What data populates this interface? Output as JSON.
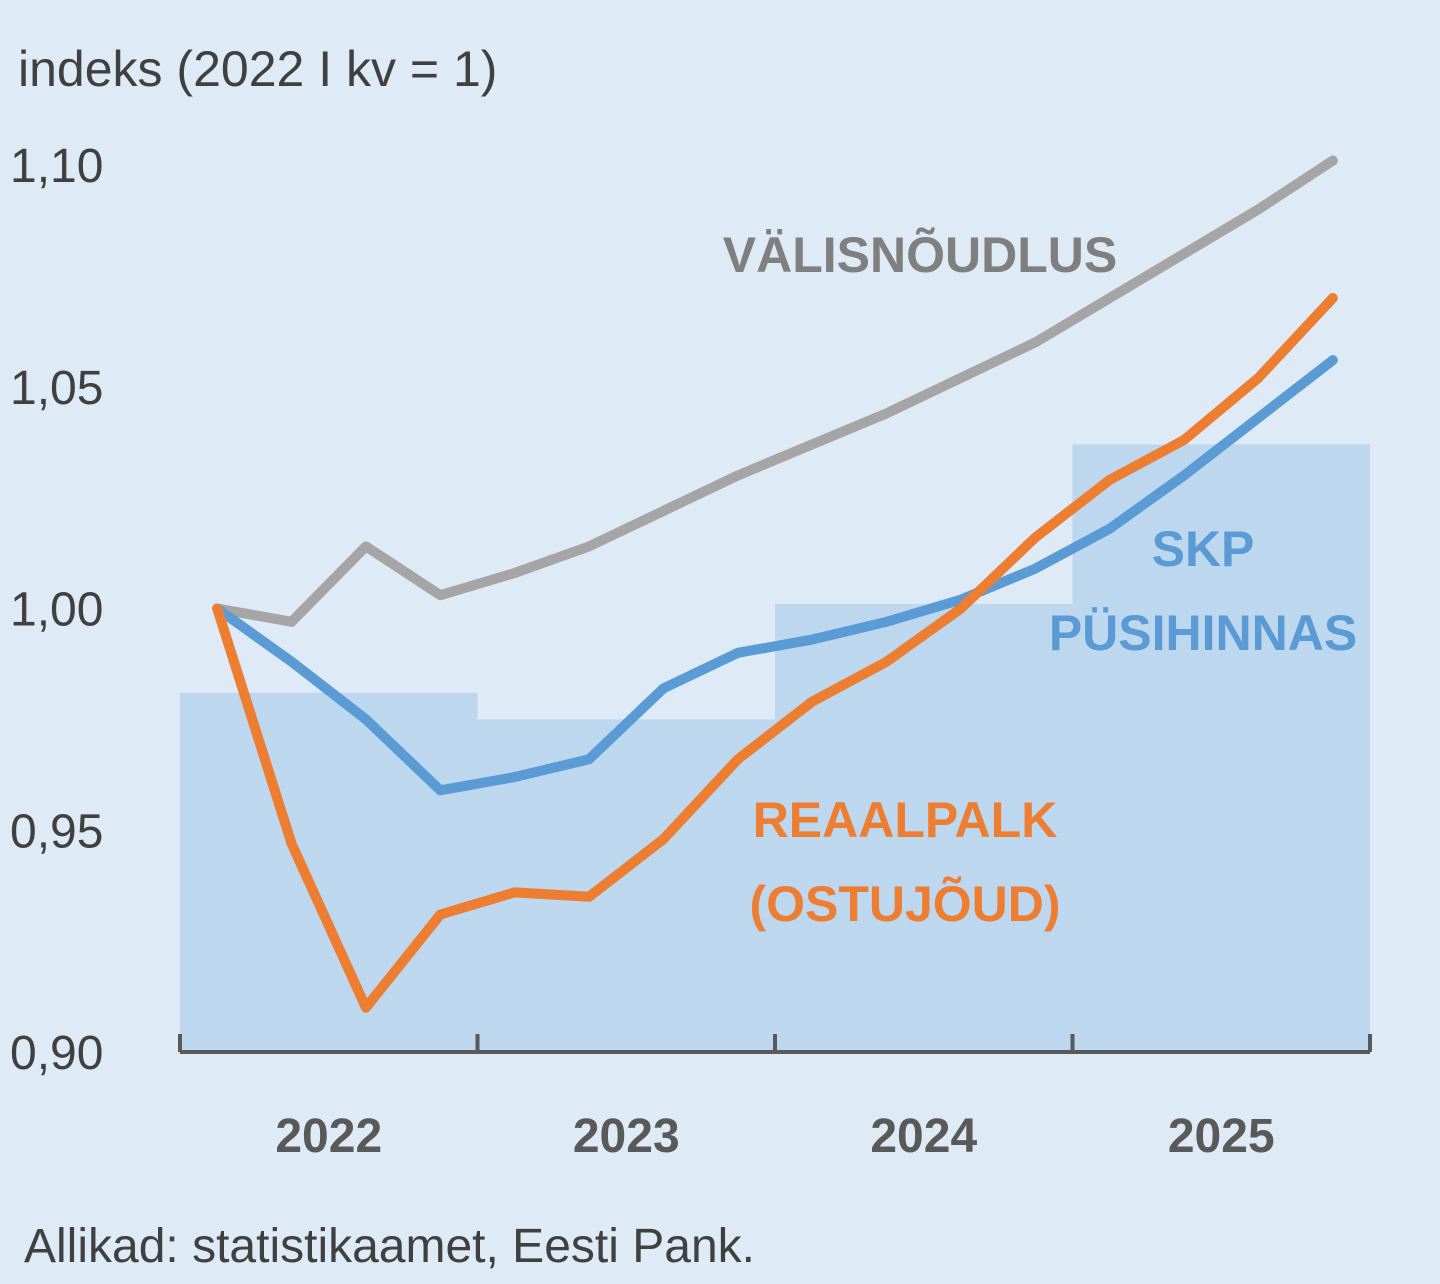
{
  "chart_data": {
    "type": "line",
    "ylabel": "indeks (2022 I kv = 1)",
    "source": "Allikad: statistikaamet, Eesti Pank.",
    "ylim": [
      0.9,
      1.1
    ],
    "yticks": [
      "1,10",
      "1,05",
      "1,00",
      "0,95",
      "0,90"
    ],
    "ytick_values": [
      1.1,
      1.05,
      1.0,
      0.95,
      0.9
    ],
    "years": [
      "2022",
      "2023",
      "2024",
      "2025"
    ],
    "quarters_per_year": 4,
    "bars": {
      "name": "SKP PÜSIHINNAS",
      "name_lines": [
        "SKP",
        "PÜSIHINNAS"
      ],
      "color": "#bdd7ee",
      "values": [
        0.981,
        0.975,
        1.001,
        1.037
      ]
    },
    "series": [
      {
        "name": "VÄLISNÕUDLUS",
        "name_lines": [
          "VÄLISNÕUDLUS"
        ],
        "color": "#a5a5a5",
        "label_color": "#7f7f7f",
        "values": [
          1.0,
          0.997,
          1.014,
          1.003,
          1.008,
          1.014,
          1.022,
          1.03,
          1.037,
          1.044,
          1.052,
          1.06,
          1.07,
          1.08,
          1.09,
          1.101
        ]
      },
      {
        "name": "SKP PÜSIHINNAS",
        "name_lines": [
          "SKP",
          "PÜSIHINNAS"
        ],
        "color": "#5b9bd5",
        "label_color": "#5b9bd5",
        "values": [
          1.0,
          0.988,
          0.975,
          0.959,
          0.962,
          0.966,
          0.982,
          0.99,
          0.993,
          0.997,
          1.002,
          1.009,
          1.018,
          1.03,
          1.043,
          1.056
        ]
      },
      {
        "name": "REAALPALK (OSTUJÕUD)",
        "name_lines": [
          "REAALPALK",
          "(OSTUJÕUD)"
        ],
        "color": "#ed7d31",
        "label_color": "#ed7d31",
        "values": [
          1.0,
          0.947,
          0.91,
          0.931,
          0.936,
          0.935,
          0.948,
          0.966,
          0.979,
          0.988,
          1.0,
          1.016,
          1.029,
          1.038,
          1.052,
          1.07
        ]
      }
    ]
  }
}
